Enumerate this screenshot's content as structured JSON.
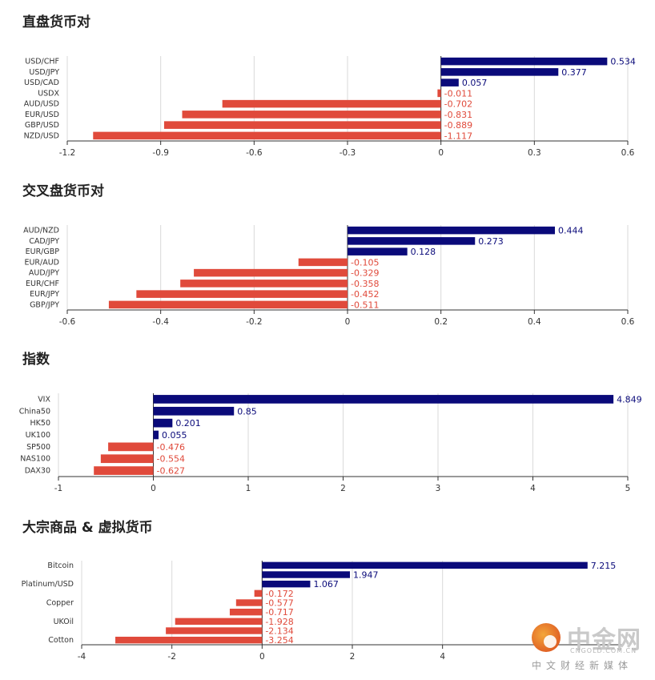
{
  "colors": {
    "positive": "#0a0a7a",
    "negative": "#e04a3b",
    "grid": "#d9d9d9",
    "axis": "#333333"
  },
  "chart_data": [
    {
      "type": "bar",
      "orientation": "horizontal",
      "title": "直盘货币对",
      "categories": [
        "USD/CHF",
        "USD/JPY",
        "USD/CAD",
        "USDX",
        "AUD/USD",
        "EUR/USD",
        "GBP/USD",
        "NZD/USD"
      ],
      "category_labels": [
        "USD/CHF",
        "USD/JPY",
        "USD/CAD",
        "USDX",
        "AUD/USD",
        "EUR/USD",
        "GBP/USD",
        "NZD/USD"
      ],
      "values": [
        0.534,
        0.377,
        0.057,
        -0.011,
        -0.702,
        -0.831,
        -0.889,
        -1.117
      ],
      "value_labels": [
        "0.534",
        "0.377",
        "0.057",
        "-0.011",
        "-0.702",
        "-0.831",
        "-0.889",
        "-1.117"
      ],
      "xlim": [
        -1.2,
        0.6
      ],
      "ticks": [
        -1.2,
        -0.9,
        -0.6,
        -0.3,
        0,
        0.3,
        0.6
      ],
      "tick_labels": [
        "-1.2",
        "-0.9",
        "-0.6",
        "-0.3",
        "0",
        "0.3",
        "0.6"
      ],
      "grid": true
    },
    {
      "type": "bar",
      "orientation": "horizontal",
      "title": "交叉盘货币对",
      "categories": [
        "AUD/NZD",
        "CAD/JPY",
        "EUR/GBP",
        "EUR/AUD",
        "AUD/JPY",
        "EUR/CHF",
        "EUR/JPY",
        "GBP/JPY"
      ],
      "category_labels": [
        "AUD/NZD",
        "CAD/JPY",
        "EUR/GBP",
        "EUR/AUD",
        "AUD/JPY",
        "EUR/CHF",
        "EUR/JPY",
        "GBP/JPY"
      ],
      "values": [
        0.444,
        0.273,
        0.128,
        -0.105,
        -0.329,
        -0.358,
        -0.452,
        -0.511
      ],
      "value_labels": [
        "0.444",
        "0.273",
        "0.128",
        "-0.105",
        "-0.329",
        "-0.358",
        "-0.452",
        "-0.511"
      ],
      "xlim": [
        -0.6,
        0.6
      ],
      "ticks": [
        -0.6,
        -0.4,
        -0.2,
        0,
        0.2,
        0.4,
        0.6
      ],
      "tick_labels": [
        "-0.6",
        "-0.4",
        "-0.2",
        "0",
        "0.2",
        "0.4",
        "0.6"
      ],
      "grid": true
    },
    {
      "type": "bar",
      "orientation": "horizontal",
      "title": "指数",
      "categories": [
        "VIX",
        "China50",
        "HK50",
        "UK100",
        "SP500",
        "NAS100",
        "DAX30"
      ],
      "category_labels": [
        "VIX",
        "China50",
        "HK50",
        "UK100",
        "SP500",
        "NAS100",
        "DAX30"
      ],
      "values": [
        4.849,
        0.85,
        0.201,
        0.055,
        -0.476,
        -0.554,
        -0.627
      ],
      "value_labels": [
        "4.849",
        "0.85",
        "0.201",
        "0.055",
        "-0.476",
        "-0.554",
        "-0.627"
      ],
      "xlim": [
        -1,
        5
      ],
      "ticks": [
        -1,
        0,
        1,
        2,
        3,
        4,
        5
      ],
      "tick_labels": [
        "-1",
        "0",
        "1",
        "2",
        "3",
        "4",
        "5"
      ],
      "grid": true
    },
    {
      "type": "bar",
      "orientation": "horizontal",
      "title": "大宗商品 & 虚拟货币",
      "categories": [
        "Bitcoin",
        "",
        "Platinum/USD",
        "",
        "Copper",
        "",
        "UKOil",
        "",
        "Cotton"
      ],
      "category_labels": [
        "Bitcoin",
        "",
        "Platinum/USD",
        "",
        "Copper",
        "",
        "UKOil",
        "",
        "Cotton"
      ],
      "values": [
        7.215,
        1.947,
        1.067,
        -0.172,
        -0.577,
        -0.717,
        -1.928,
        -2.134,
        -3.254
      ],
      "value_labels": [
        "7.215",
        "1.947",
        "1.067",
        "-0.172",
        "-0.577",
        "-0.717",
        "-1.928",
        "-2.134",
        "-3.254"
      ],
      "xlim": [
        -4,
        8
      ],
      "ticks": [
        -4,
        -2,
        0,
        2,
        4
      ],
      "tick_labels": [
        "-4",
        "-2",
        "0",
        "2",
        "4"
      ],
      "grid": true
    }
  ],
  "watermark": {
    "name": "中金网",
    "url": "CNGOLD.COM.CN",
    "subtitle": "中文财经新媒体"
  }
}
